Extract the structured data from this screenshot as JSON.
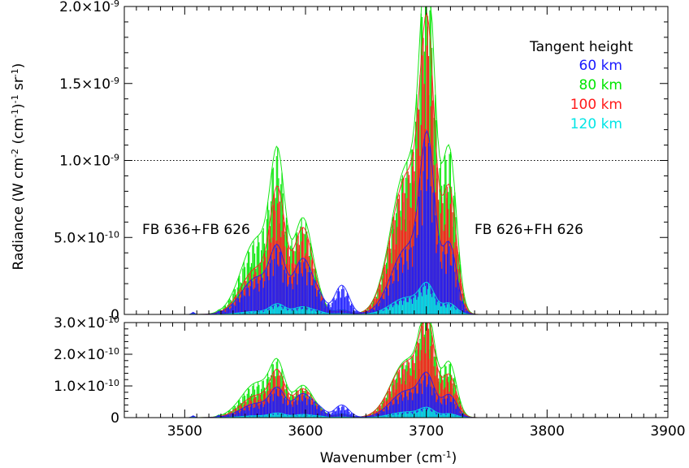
{
  "chart_data": [
    {
      "type": "line",
      "panel": "main",
      "xlim": [
        3450,
        3900
      ],
      "ylim": [
        0,
        2e-09
      ],
      "ylabel": "Radiance (W cm",
      "ylabel_parts": [
        "Radiance (W cm",
        "-2",
        " (cm",
        "-1",
        ")",
        "-1",
        " sr",
        "-1",
        ")"
      ],
      "xticks": [
        3500,
        3600,
        3700,
        3800,
        3900
      ],
      "yticks": [
        {
          "value": 0,
          "mant": "0",
          "exp": ""
        },
        {
          "value": 5e-10,
          "mant": "5.0×10",
          "exp": "-10"
        },
        {
          "value": 1e-09,
          "mant": "1.0×10",
          "exp": "-9"
        },
        {
          "value": 1.5e-09,
          "mant": "1.5×10",
          "exp": "-9"
        },
        {
          "value": 2e-09,
          "mant": "2.0×10",
          "exp": "-9"
        }
      ],
      "reference_line": 1e-09,
      "legend_title": "Tangent height",
      "legend_position": "top-right",
      "annotations": [
        "FB 636+FB 626",
        "FB 626+FH 626"
      ],
      "series": [
        {
          "name": "60 km",
          "color": "#1a1aff",
          "bands": [
            [
              3507,
              1.2,
              1.4e-11
            ],
            [
              3528,
              1,
              1e-11
            ],
            [
              3560,
              13,
              2.4e-10
            ],
            [
              3577,
              6,
              3.4e-10
            ],
            [
              3598,
              8,
              3.6e-10
            ],
            [
              3612,
              5,
              7e-11
            ],
            [
              3630,
              6,
              1.9e-10
            ],
            [
              3684,
              13,
              4.3e-10
            ],
            [
              3701,
              6,
              1e-09
            ],
            [
              3719,
              6,
              4.5e-10
            ]
          ]
        },
        {
          "name": "80 km",
          "color": "#00e600",
          "bands": [
            [
              3507,
              1.2,
              8e-12
            ],
            [
              3528,
              1,
              6e-12
            ],
            [
              3560,
              13,
              4.9e-10
            ],
            [
              3577,
              6,
              8.6e-10
            ],
            [
              3598,
              8,
              6.2e-10
            ],
            [
              3612,
              5,
              4e-11
            ],
            [
              3630,
              6,
              3e-11
            ],
            [
              3684,
              13,
              9.6e-10
            ],
            [
              3701,
              6,
              1.95e-09
            ],
            [
              3719,
              6,
              1.05e-09
            ]
          ]
        },
        {
          "name": "100 km",
          "color": "#ff1a1a",
          "bands": [
            [
              3507,
              1.2,
              6e-12
            ],
            [
              3528,
              1,
              5e-12
            ],
            [
              3560,
              13,
              3e-10
            ],
            [
              3577,
              6,
              6.9e-10
            ],
            [
              3598,
              8,
              5.6e-10
            ],
            [
              3612,
              5,
              3e-11
            ],
            [
              3630,
              6,
              2e-11
            ],
            [
              3684,
              13,
              9e-10
            ],
            [
              3701,
              6,
              1.55e-09
            ],
            [
              3719,
              6,
              8e-10
            ]
          ]
        },
        {
          "name": "120 km",
          "color": "#00e5e5",
          "bands": [
            [
              3507,
              1.2,
              2e-12
            ],
            [
              3528,
              1,
              2e-12
            ],
            [
              3560,
              13,
              2e-11
            ],
            [
              3577,
              6,
              6e-11
            ],
            [
              3598,
              8,
              5e-11
            ],
            [
              3612,
              5,
              1e-11
            ],
            [
              3630,
              6,
              5e-12
            ],
            [
              3684,
              13,
              1.1e-10
            ],
            [
              3701,
              6,
              1.6e-10
            ],
            [
              3719,
              6,
              7e-11
            ]
          ]
        }
      ]
    },
    {
      "type": "line",
      "panel": "lower",
      "xlabel": "Wavenumber (cm",
      "xlabel_parts": [
        "Wavenumber (cm",
        "-1",
        ")"
      ],
      "xlim": [
        3450,
        3900
      ],
      "ylim": [
        0,
        3e-10
      ],
      "xticks": [
        3500,
        3600,
        3700,
        3800,
        3900
      ],
      "yticks": [
        {
          "value": 0,
          "mant": "0",
          "exp": ""
        },
        {
          "value": 1e-10,
          "mant": "1.0×10",
          "exp": "-10"
        },
        {
          "value": 2e-10,
          "mant": "2.0×10",
          "exp": "-10"
        },
        {
          "value": 3e-10,
          "mant": "3.0×10",
          "exp": "-10"
        }
      ],
      "series": [
        {
          "name": "60 km",
          "color": "#1a1aff",
          "bands": [
            [
              3507,
              1.2,
              6e-12
            ],
            [
              3528,
              1,
              5e-12
            ],
            [
              3560,
              13,
              4.5e-11
            ],
            [
              3577,
              6,
              7.5e-11
            ],
            [
              3598,
              8,
              7.5e-11
            ],
            [
              3612,
              5,
              2e-11
            ],
            [
              3630,
              6,
              4e-11
            ],
            [
              3684,
              13,
              8.5e-11
            ],
            [
              3701,
              6,
              1.05e-10
            ],
            [
              3719,
              6,
              7e-11
            ]
          ]
        },
        {
          "name": "80 km",
          "color": "#00e600",
          "bands": [
            [
              3507,
              1.2,
              4e-12
            ],
            [
              3528,
              1,
              3e-12
            ],
            [
              3560,
              13,
              1.1e-10
            ],
            [
              3577,
              6,
              1.35e-10
            ],
            [
              3598,
              8,
              1e-10
            ],
            [
              3612,
              5,
              1.2e-11
            ],
            [
              3630,
              6,
              1.2e-11
            ],
            [
              3684,
              13,
              1.8e-10
            ],
            [
              3701,
              6,
              2.8e-10
            ],
            [
              3719,
              6,
              1.7e-10
            ]
          ]
        },
        {
          "name": "100 km",
          "color": "#ff1a1a",
          "bands": [
            [
              3507,
              1.2,
              3e-12
            ],
            [
              3528,
              1,
              2e-12
            ],
            [
              3560,
              13,
              7e-11
            ],
            [
              3577,
              6,
              1.2e-10
            ],
            [
              3598,
              8,
              9e-11
            ],
            [
              3612,
              5,
              1e-11
            ],
            [
              3630,
              6,
              8e-12
            ],
            [
              3684,
              13,
              1.75e-10
            ],
            [
              3701,
              6,
              2.5e-10
            ],
            [
              3719,
              6,
              1.3e-10
            ]
          ]
        },
        {
          "name": "120 km",
          "color": "#00e5e5",
          "bands": [
            [
              3507,
              1.2,
              1e-12
            ],
            [
              3528,
              1,
              1e-12
            ],
            [
              3560,
              13,
              6e-12
            ],
            [
              3577,
              6,
              1.2e-11
            ],
            [
              3598,
              8,
              1e-11
            ],
            [
              3612,
              5,
              3e-12
            ],
            [
              3630,
              6,
              2e-12
            ],
            [
              3684,
              13,
              1.8e-11
            ],
            [
              3701,
              6,
              2.5e-11
            ],
            [
              3719,
              6,
              1.2e-11
            ]
          ]
        }
      ]
    }
  ]
}
